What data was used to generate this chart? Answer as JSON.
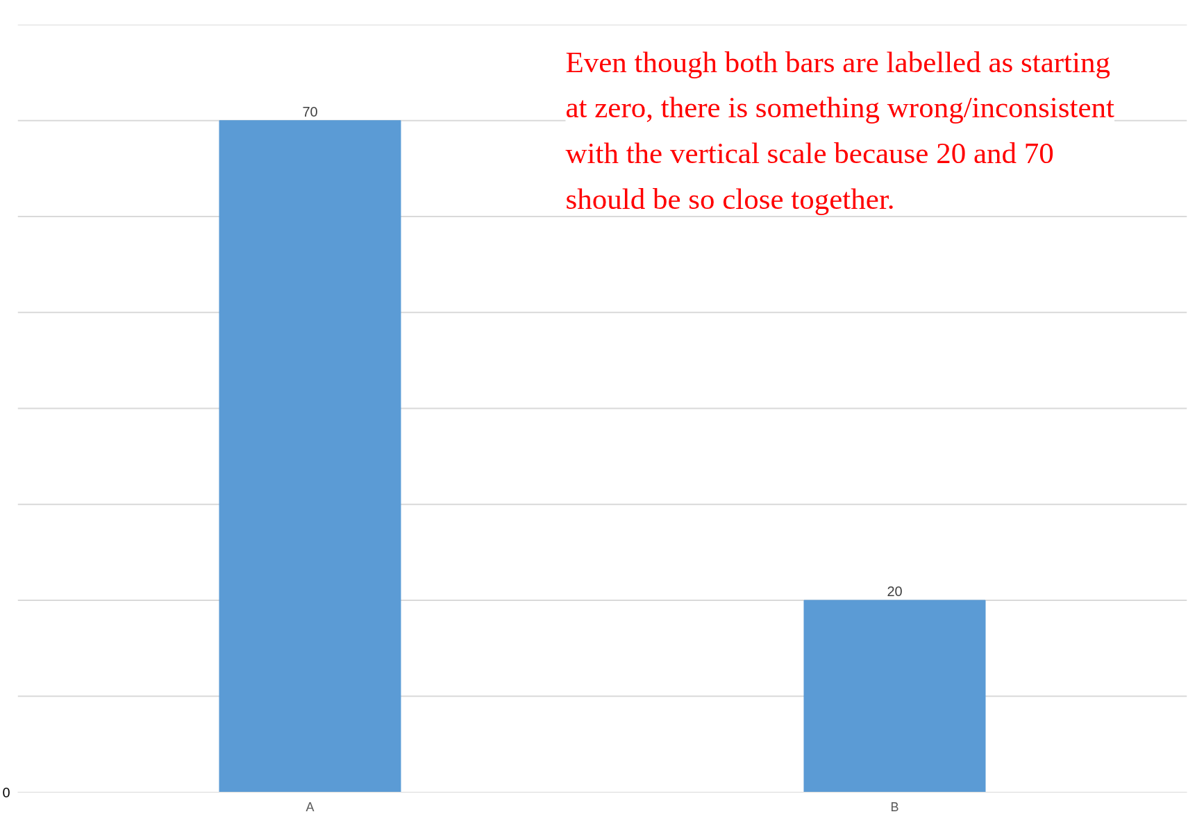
{
  "chart_data": {
    "type": "bar",
    "categories": [
      "A",
      "B"
    ],
    "values": [
      70,
      20
    ],
    "data_labels": true,
    "color": "#5b9bd5",
    "grid": "y",
    "annotations": [
      "0",
      "Even though both bars are labelled as starting at zero, there is something wrong/inconsistent with the vertical scale because 20 and 70 should be so close together."
    ]
  }
}
